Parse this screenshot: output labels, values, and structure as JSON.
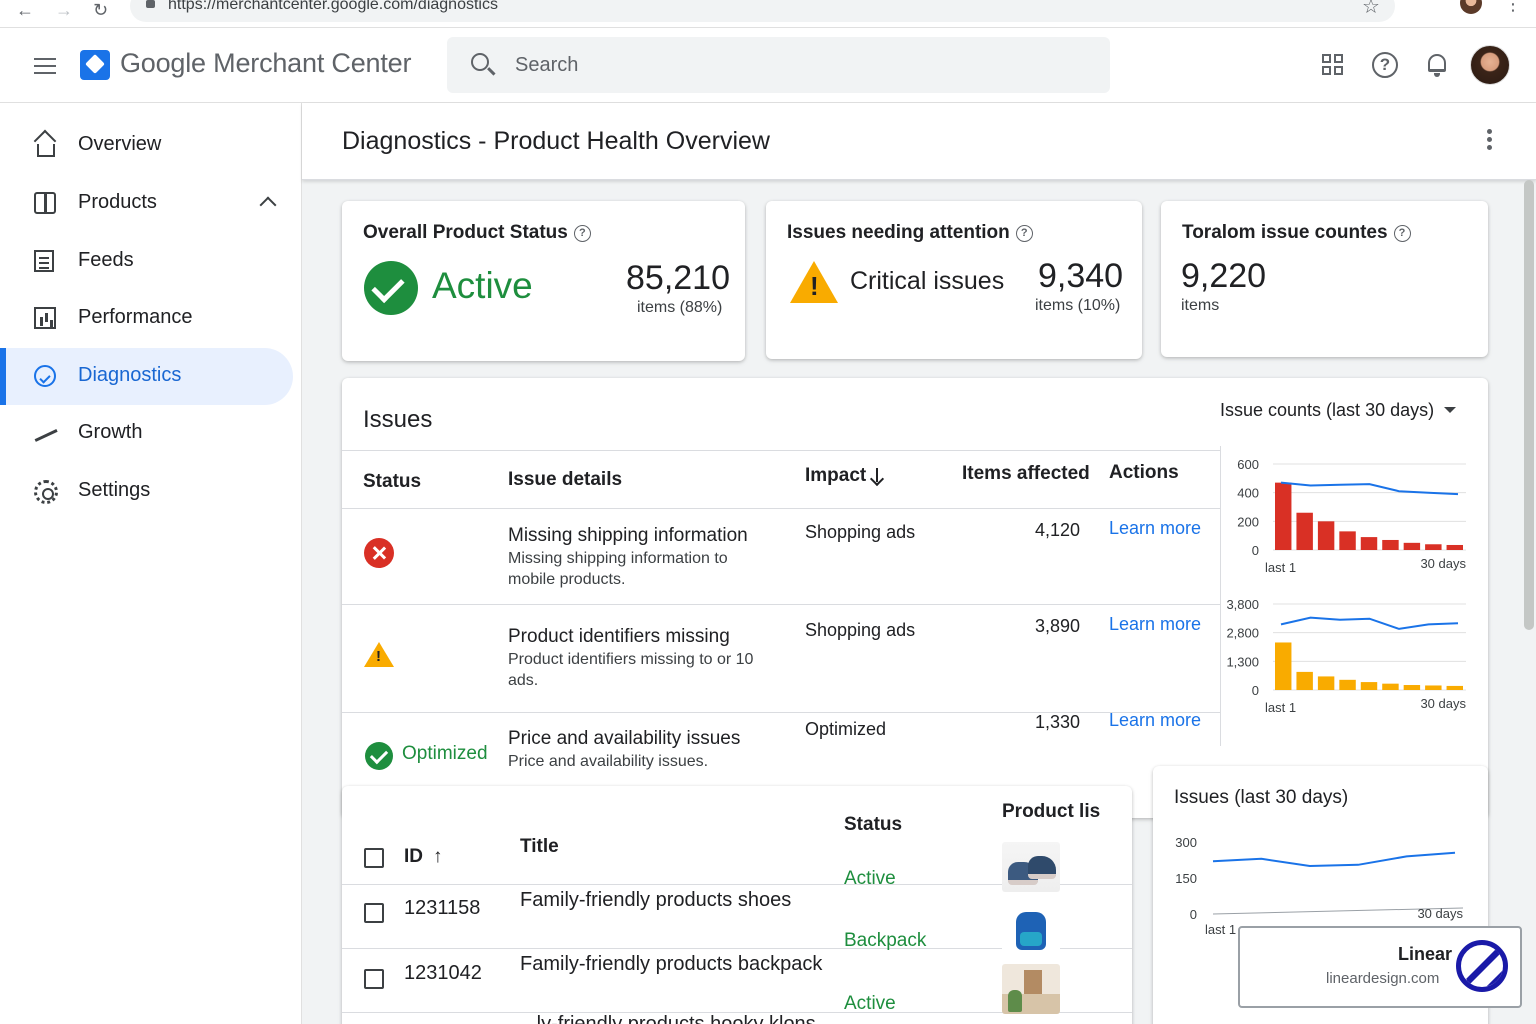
{
  "browser": {
    "url": "https://merchantcenter.google.com/diagnostics",
    "back_icon": "arrow-left-icon",
    "forward_icon": "arrow-right-icon",
    "reload_icon": "reload-icon"
  },
  "header": {
    "app_name": "Google Merchant Center",
    "search_placeholder": "Search"
  },
  "sidebar": {
    "items": [
      {
        "label": "Overview",
        "icon": "home-icon"
      },
      {
        "label": "Products",
        "icon": "box-icon"
      },
      {
        "label": "Feeds",
        "icon": "feed-icon"
      },
      {
        "label": "Performance",
        "icon": "bar-chart-icon"
      },
      {
        "label": "Diagnostics",
        "icon": "diagnostics-icon",
        "active": true
      },
      {
        "label": "Growth",
        "icon": "trending-up-icon"
      },
      {
        "label": "Settings",
        "icon": "gear-icon"
      }
    ]
  },
  "page": {
    "title_prefix": "Diagnostics - ",
    "title_suffix": "Product Health Overview"
  },
  "summary": {
    "overall": {
      "title": "Overall Product Status",
      "status": "Active",
      "count": "85,210",
      "sub": "items (88%)"
    },
    "attention": {
      "title": "Issues needing attention",
      "label": "Critical issues",
      "count": "9,340",
      "sub": "items (10%)"
    },
    "total": {
      "title": "Toralom issue countes",
      "count": "9,220",
      "sub": "items"
    }
  },
  "issues": {
    "title": "Issues",
    "dropdown": "Issue counts (last 30 days)",
    "headers": {
      "status": "Status",
      "details": "Issue details",
      "impact": "Impact",
      "items": "Items affected",
      "actions": "Actions"
    },
    "rows": [
      {
        "status_icon": "error-icon",
        "title": "Missing shipping information",
        "desc1": "Missing shipping information to",
        "desc2": "mobile products.",
        "impact": "Shopping ads",
        "items": "4,120",
        "action": "Learn more"
      },
      {
        "status_icon": "warning-icon",
        "title": "Product identifiers missing",
        "desc1": "Product identifiers missing to or 10",
        "desc2": "ads.",
        "impact": "Shopping ads",
        "items": "3,890",
        "action": "Learn more"
      },
      {
        "status_icon": "check-icon",
        "status_label": "Optimized",
        "title": "Price and availability issues",
        "desc1": "Price and availability issues.",
        "desc2": "",
        "impact": "Optimized",
        "items": "1,330",
        "action": "Learn more"
      }
    ]
  },
  "chart_data": [
    {
      "type": "bar",
      "y_ticks": [
        "600",
        "400",
        "200",
        "0"
      ],
      "ylim": [
        0,
        600
      ],
      "x_start_label": "last 1",
      "x_end_label": "30 days",
      "values": [
        470,
        260,
        200,
        130,
        90,
        70,
        50,
        40,
        35
      ],
      "line_values": [
        470,
        450,
        455,
        460,
        410,
        400,
        390
      ],
      "bar_color": "#d93025",
      "line_color": "#1a73e8"
    },
    {
      "type": "bar",
      "y_ticks": [
        "3,800",
        "2,800",
        "1,300",
        "0"
      ],
      "ylim": [
        0,
        3800
      ],
      "x_start_label": "last 1",
      "x_end_label": "30 days",
      "values": [
        2100,
        800,
        600,
        450,
        350,
        280,
        220,
        200,
        180
      ],
      "line_values": [
        2900,
        3200,
        3100,
        3150,
        2700,
        2900,
        2950
      ],
      "bar_color": "#f9ab00",
      "line_color": "#1a73e8"
    },
    {
      "type": "line",
      "title": "Issues (last 30 days)",
      "y_ticks": [
        "300",
        "150",
        "0"
      ],
      "ylim": [
        0,
        300
      ],
      "x_start_label": "last 1",
      "x_end_label": "30 days",
      "values": [
        220,
        230,
        200,
        205,
        240,
        255
      ],
      "line_color": "#1a73e8"
    }
  ],
  "products": {
    "headers": {
      "id": "ID",
      "title": "Title",
      "status": "Status",
      "product": "Product lis"
    },
    "rows": [
      {
        "id": "1231158",
        "title": "Family-friendly products shoes",
        "status": "Active",
        "thumb": "shoes-image"
      },
      {
        "id": "1231042",
        "title": "Family-friendly products backpack",
        "status": "Backpack",
        "thumb": "backpack-image"
      },
      {
        "id": "",
        "title": "...ly-friendly products hooky klons",
        "status": "Active",
        "thumb": "living-room-image"
      }
    ]
  },
  "watermark": {
    "name": "Linear",
    "url": "lineardesign.com"
  }
}
